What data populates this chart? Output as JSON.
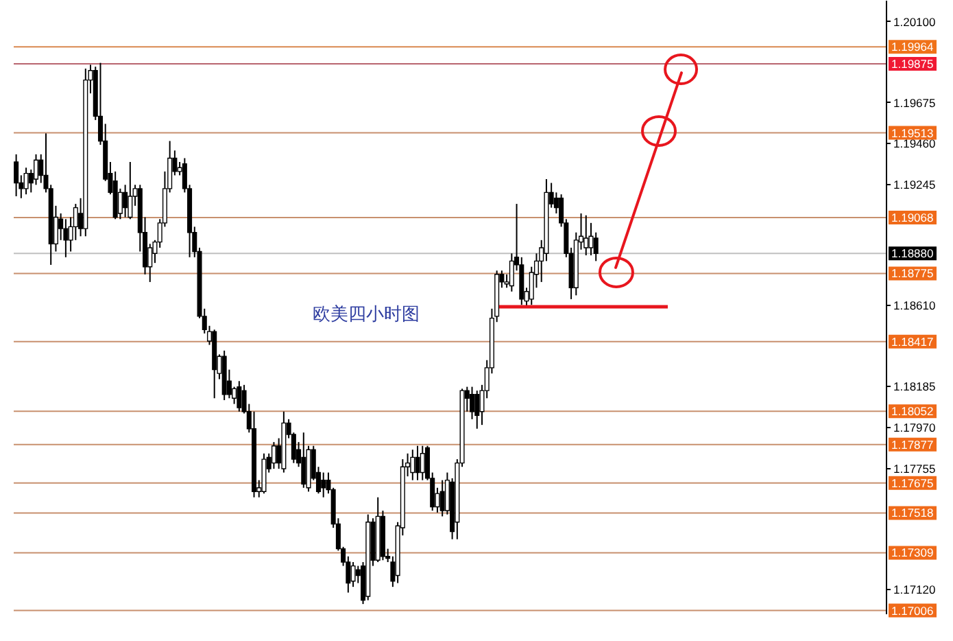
{
  "chart_data": {
    "type": "candlestick",
    "annotations": [
      "欧美四小时图"
    ],
    "categories": [
      null,
      null,
      null,
      null,
      null,
      null,
      null,
      null,
      null,
      null,
      null,
      null,
      null,
      null,
      null,
      null,
      null,
      null,
      null,
      null,
      null,
      null,
      null,
      null,
      null,
      null,
      null,
      null,
      null,
      null,
      null,
      null,
      null,
      null,
      null,
      null,
      null,
      null,
      null,
      null,
      null,
      null,
      null,
      null,
      null,
      null,
      null,
      null,
      null,
      null,
      null,
      null,
      null,
      null,
      null,
      null,
      null,
      null,
      null,
      null,
      null,
      null,
      null,
      null,
      null,
      null,
      null,
      null,
      null,
      null,
      null,
      null,
      null,
      null,
      null,
      null,
      null,
      null,
      null,
      null,
      null,
      null,
      null,
      null,
      null,
      null,
      null,
      null,
      null,
      null,
      null,
      null,
      null,
      null,
      null,
      null,
      null,
      null,
      null,
      null,
      null,
      null,
      null,
      null,
      null,
      null,
      null,
      null,
      null,
      null,
      null,
      null,
      null,
      null,
      null,
      null,
      null,
      null,
      null,
      null,
      null,
      null,
      null,
      null,
      null,
      null,
      null,
      null,
      null,
      null,
      null,
      null,
      null,
      null,
      null,
      null,
      null,
      null,
      null,
      null,
      null,
      null,
      null,
      null,
      null,
      null,
      null,
      null,
      null,
      null,
      null,
      null,
      null,
      null,
      null,
      null,
      null,
      null,
      null,
      null,
      null,
      null,
      null,
      null,
      null,
      null,
      null,
      null,
      null,
      null,
      null,
      null,
      null,
      null,
      null,
      null
    ],
    "ohlc": [
      [
        1.1936,
        1.194,
        1.1918,
        1.1925
      ],
      [
        1.1925,
        1.1929,
        1.1917,
        1.1922
      ],
      [
        1.1922,
        1.1933,
        1.1919,
        1.193
      ],
      [
        1.193,
        1.1932,
        1.192,
        1.1925
      ],
      [
        1.1927,
        1.194,
        1.1924,
        1.1937
      ],
      [
        1.1937,
        1.194,
        1.1925,
        1.1929
      ],
      [
        1.1929,
        1.1951,
        1.192,
        1.1922
      ],
      [
        1.1922,
        1.1924,
        1.1882,
        1.1893
      ],
      [
        1.1893,
        1.1913,
        1.1889,
        1.1907
      ],
      [
        1.1906,
        1.1909,
        1.1895,
        1.1901
      ],
      [
        1.1901,
        1.1906,
        1.1886,
        1.1895
      ],
      [
        1.1895,
        1.1907,
        1.1889,
        1.1902
      ],
      [
        1.1902,
        1.1914,
        1.1895,
        1.1912
      ],
      [
        1.1909,
        1.1917,
        1.1897,
        1.1901
      ],
      [
        1.1901,
        1.1985,
        1.1897,
        1.1979
      ],
      [
        1.1979,
        1.1987,
        1.1972,
        1.1984
      ],
      [
        1.1984,
        1.1986,
        1.1958,
        1.196
      ],
      [
        1.196,
        1.1988,
        1.1945,
        1.1947
      ],
      [
        1.1947,
        1.1956,
        1.1926,
        1.1927
      ],
      [
        1.193,
        1.1936,
        1.1919,
        1.192
      ],
      [
        1.1926,
        1.1931,
        1.1906,
        1.1907
      ],
      [
        1.1909,
        1.1922,
        1.1906,
        1.192
      ],
      [
        1.192,
        1.1924,
        1.1907,
        1.1912
      ],
      [
        1.1907,
        1.1936,
        1.1906,
        1.1918
      ],
      [
        1.1918,
        1.1924,
        1.1913,
        1.1922
      ],
      [
        1.1922,
        1.1924,
        1.1889,
        1.1899
      ],
      [
        1.1899,
        1.1907,
        1.1877,
        1.1881
      ],
      [
        1.1881,
        1.1893,
        1.1873,
        1.1891
      ],
      [
        1.1888,
        1.1895,
        1.1883,
        1.1894
      ],
      [
        1.1894,
        1.1906,
        1.1891,
        1.1904
      ],
      [
        1.1904,
        1.1931,
        1.1902,
        1.1922
      ],
      [
        1.1922,
        1.1947,
        1.192,
        1.1938
      ],
      [
        1.1938,
        1.1942,
        1.1929,
        1.1931
      ],
      [
        1.1931,
        1.1936,
        1.1929,
        1.1933
      ],
      [
        1.1935,
        1.1938,
        1.192,
        1.1922
      ],
      [
        1.1922,
        1.1924,
        1.1886,
        1.1899
      ],
      [
        1.1899,
        1.1902,
        1.1886,
        1.1889
      ],
      [
        1.1889,
        1.1891,
        1.1854,
        1.1855
      ],
      [
        1.1855,
        1.1859,
        1.1846,
        1.1848
      ],
      [
        1.1842,
        1.185,
        1.184,
        1.1847
      ],
      [
        1.1847,
        1.1848,
        1.1812,
        1.1827
      ],
      [
        1.1825,
        1.1835,
        1.1822,
        1.1834
      ],
      [
        1.1834,
        1.1837,
        1.1811,
        1.1814
      ],
      [
        1.1821,
        1.1827,
        1.1812,
        1.1814
      ],
      [
        1.1812,
        1.1818,
        1.1809,
        1.1817
      ],
      [
        1.1818,
        1.1821,
        1.1805,
        1.1807
      ],
      [
        1.1816,
        1.1819,
        1.1804,
        1.1805
      ],
      [
        1.1805,
        1.1809,
        1.1794,
        1.1796
      ],
      [
        1.1796,
        1.1805,
        1.176,
        1.1763
      ],
      [
        1.1763,
        1.1769,
        1.176,
        1.1765
      ],
      [
        1.1763,
        1.1783,
        1.1762,
        1.178
      ],
      [
        1.1781,
        1.1783,
        1.1773,
        1.1775
      ],
      [
        1.1778,
        1.1789,
        1.1775,
        1.1787
      ],
      [
        1.1787,
        1.1791,
        1.1775,
        1.1778
      ],
      [
        1.1775,
        1.1805,
        1.1773,
        1.1799
      ],
      [
        1.1799,
        1.1801,
        1.1791,
        1.1793
      ],
      [
        1.1793,
        1.1794,
        1.1778,
        1.178
      ],
      [
        1.1785,
        1.1789,
        1.1776,
        1.1778
      ],
      [
        1.1781,
        1.1794,
        1.1765,
        1.1767
      ],
      [
        1.1765,
        1.1787,
        1.1763,
        1.1785
      ],
      [
        1.1785,
        1.1787,
        1.1769,
        1.177
      ],
      [
        1.1773,
        1.1776,
        1.1762,
        1.1763
      ],
      [
        1.1769,
        1.1773,
        1.176,
        1.1765
      ],
      [
        1.1769,
        1.1773,
        1.1762,
        1.1764
      ],
      [
        1.1764,
        1.1765,
        1.1744,
        1.1746
      ],
      [
        1.1746,
        1.1749,
        1.1732,
        1.1733
      ],
      [
        1.1733,
        1.1734,
        1.1724,
        1.1726
      ],
      [
        1.1726,
        1.1729,
        1.171,
        1.1715
      ],
      [
        1.1716,
        1.1726,
        1.1713,
        1.1724
      ],
      [
        1.1722,
        1.1724,
        1.1715,
        1.1719
      ],
      [
        1.1724,
        1.1726,
        1.1704,
        1.1706
      ],
      [
        1.1708,
        1.1751,
        1.1706,
        1.1747
      ],
      [
        1.1747,
        1.1749,
        1.1724,
        1.1727
      ],
      [
        1.1727,
        1.176,
        1.1726,
        1.175
      ],
      [
        1.175,
        1.1753,
        1.1727,
        1.1729
      ],
      [
        1.1729,
        1.1733,
        1.1726,
        1.1728
      ],
      [
        1.1726,
        1.1729,
        1.1713,
        1.1716
      ],
      [
        1.1719,
        1.1747,
        1.1715,
        1.1745
      ],
      [
        1.1744,
        1.178,
        1.174,
        1.1776
      ],
      [
        1.1776,
        1.1783,
        1.1771,
        1.1778
      ],
      [
        1.1773,
        1.1785,
        1.1769,
        1.1781
      ],
      [
        1.1781,
        1.1787,
        1.1769,
        1.1773
      ],
      [
        1.1773,
        1.1787,
        1.1769,
        1.1783
      ],
      [
        1.1786,
        1.1787,
        1.1769,
        1.177
      ],
      [
        1.177,
        1.1773,
        1.1753,
        1.1755
      ],
      [
        1.1755,
        1.1765,
        1.1752,
        1.1762
      ],
      [
        1.1763,
        1.1769,
        1.175,
        1.1753
      ],
      [
        1.1753,
        1.1773,
        1.1751,
        1.1769
      ],
      [
        1.1768,
        1.177,
        1.1738,
        1.1742
      ],
      [
        1.1747,
        1.178,
        1.1738,
        1.1778
      ],
      [
        1.1778,
        1.1817,
        1.1776,
        1.1816
      ],
      [
        1.1816,
        1.1818,
        1.1805,
        1.1812
      ],
      [
        1.1814,
        1.1818,
        1.1801,
        1.1805
      ],
      [
        1.1814,
        1.1816,
        1.1796,
        1.1803
      ],
      [
        1.1805,
        1.1819,
        1.1798,
        1.1816
      ],
      [
        1.1816,
        1.1832,
        1.1812,
        1.1828
      ],
      [
        1.1828,
        1.1859,
        1.1825,
        1.1854
      ],
      [
        1.1855,
        1.1879,
        1.1852,
        1.1877
      ],
      [
        1.1877,
        1.1879,
        1.187,
        1.1873
      ],
      [
        1.1872,
        1.1877,
        1.187,
        1.1873
      ],
      [
        1.1871,
        1.1888,
        1.1868,
        1.1884
      ],
      [
        1.1886,
        1.1914,
        1.1879,
        1.1882
      ],
      [
        1.1882,
        1.1886,
        1.1861,
        1.1864
      ],
      [
        1.1863,
        1.187,
        1.186,
        1.1868
      ],
      [
        1.1864,
        1.1881,
        1.1861,
        1.1878
      ],
      [
        1.1877,
        1.1888,
        1.187,
        1.1884
      ],
      [
        1.1884,
        1.1895,
        1.1873,
        1.1891
      ],
      [
        1.1888,
        1.1927,
        1.1884,
        1.192
      ],
      [
        1.192,
        1.1925,
        1.1912,
        1.1914
      ],
      [
        1.1917,
        1.192,
        1.1909,
        1.1912
      ],
      [
        1.1917,
        1.1919,
        1.1902,
        1.1904
      ],
      [
        1.1904,
        1.1906,
        1.1886,
        1.1888
      ],
      [
        1.1888,
        1.1891,
        1.1864,
        1.187
      ],
      [
        1.187,
        1.1899,
        1.1866,
        1.1895
      ],
      [
        1.1894,
        1.1909,
        1.189,
        1.1897
      ],
      [
        1.1891,
        1.1908,
        1.1887,
        1.1896
      ],
      [
        1.1891,
        1.1904,
        1.1887,
        1.1897
      ],
      [
        1.1896,
        1.1899,
        1.1884,
        1.1888
      ],
      null,
      null,
      null,
      null,
      null,
      null,
      null,
      null,
      null,
      null,
      null,
      null,
      null,
      null,
      null,
      null,
      null,
      null,
      null,
      null,
      null,
      null,
      null,
      null,
      null,
      null,
      null,
      null,
      null,
      null,
      null,
      null,
      null,
      null,
      null,
      null,
      null,
      null,
      null,
      null,
      null,
      null,
      null,
      null,
      null,
      null,
      null,
      null,
      null,
      null,
      null,
      null,
      null,
      null,
      null,
      null,
      null,
      null
    ],
    "ylim": [
      1.1699,
      1.2021
    ],
    "yticks": [
      {
        "value": 1.201,
        "label": "1.20100"
      },
      1.19675,
      {
        "value": 1.1946,
        "label": "1.19460"
      },
      1.19245,
      {
        "value": 1.1861,
        "label": "1.18610"
      },
      1.18185,
      {
        "value": 1.1797,
        "label": "1.17970"
      },
      1.17755,
      {
        "value": 1.1712,
        "label": "1.17120"
      }
    ],
    "tick_labels": "y",
    "ref_lines": [
      {
        "axis": "y",
        "value": 1.19964,
        "label": "1.19964",
        "color": "#d9884f"
      },
      {
        "axis": "y",
        "value": 1.19875,
        "label": "1.19875",
        "color": "#b8646e"
      },
      {
        "axis": "y",
        "value": 1.19513,
        "label": "1.19513",
        "color": "#c8906e"
      },
      {
        "axis": "y",
        "value": 1.19068,
        "label": "1.19068",
        "color": "#c8906e"
      },
      {
        "axis": "y",
        "value": 1.1888,
        "label": "1.18880",
        "color": "#c0c0c0"
      },
      {
        "axis": "y",
        "value": 1.18775,
        "label": "1.18775",
        "color": "#c8906e"
      },
      {
        "axis": "y",
        "value": 1.18417,
        "label": "1.18417",
        "color": "#c8906e"
      },
      {
        "axis": "y",
        "value": 1.18052,
        "label": "1.18052",
        "color": "#c8906e"
      },
      {
        "axis": "y",
        "value": 1.17877,
        "label": "1.17877",
        "color": "#c8906e"
      },
      {
        "axis": "y",
        "value": 1.17675,
        "label": "1.17675",
        "color": "#c8906e"
      },
      {
        "axis": "y",
        "value": 1.17518,
        "label": "1.17518",
        "color": "#c8906e"
      },
      {
        "axis": "y",
        "value": 1.17309,
        "label": "1.17309",
        "color": "#c8906e"
      },
      {
        "axis": "y",
        "value": 1.17006,
        "label": "1.17006",
        "color": "#c8906e"
      }
    ]
  }
}
